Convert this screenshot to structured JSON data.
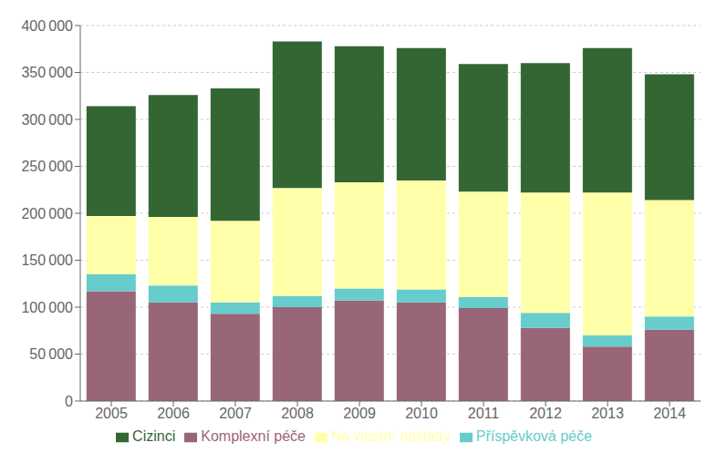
{
  "chart_data": {
    "type": "bar",
    "categories": [
      "2005",
      "2006",
      "2007",
      "2008",
      "2009",
      "2010",
      "2011",
      "2012",
      "2013",
      "2014"
    ],
    "series": [
      {
        "name": "Komplexní péče",
        "color": "#996677",
        "values": [
          117000,
          105000,
          93000,
          100000,
          107000,
          105000,
          99000,
          78000,
          58000,
          76000
        ]
      },
      {
        "name": "Příspěvková péče",
        "color": "#66cccc",
        "values": [
          18000,
          18000,
          12000,
          12000,
          13000,
          14000,
          12000,
          16000,
          12000,
          14000
        ]
      },
      {
        "name": "Na vlastní náklady",
        "color": "#ffffaa",
        "values": [
          62000,
          73000,
          87000,
          115000,
          113000,
          116000,
          112000,
          128000,
          152000,
          124000
        ]
      },
      {
        "name": "Cizinci",
        "color": "#336633",
        "values": [
          117000,
          130000,
          141000,
          156000,
          145000,
          141000,
          136000,
          138000,
          154000,
          134000
        ]
      }
    ],
    "ylim": [
      0,
      400000
    ],
    "yticks": [
      0,
      {
        "value": 50000,
        "label": "50 000"
      },
      {
        "value": 100000,
        "label": "100 000"
      },
      {
        "value": 150000,
        "label": "150 000"
      },
      {
        "value": 200000,
        "label": "200 000"
      },
      {
        "value": 250000,
        "label": "250 000"
      },
      {
        "value": 300000,
        "label": "300 000"
      },
      {
        "value": 350000,
        "label": "350 000"
      },
      {
        "value": 400000,
        "label": "400 000"
      }
    ],
    "stacked": true,
    "grid": true,
    "legend": "bottom"
  }
}
